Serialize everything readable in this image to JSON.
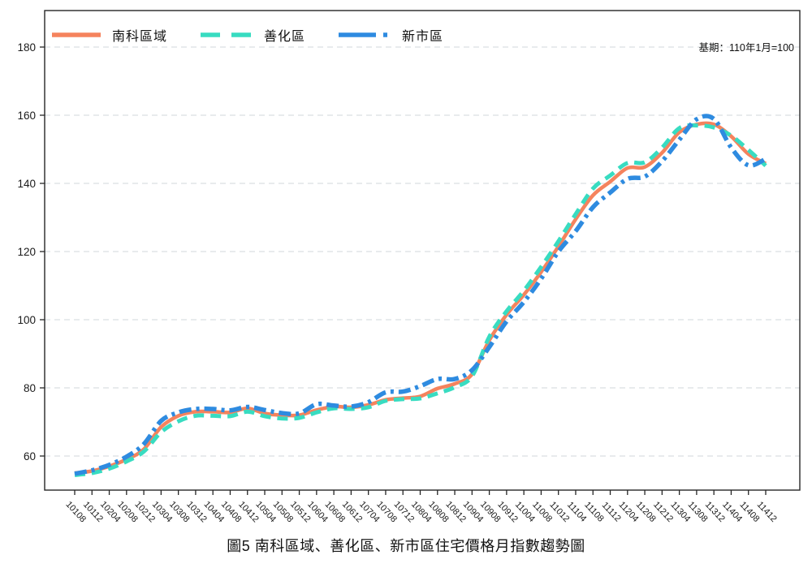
{
  "caption": "圖5 南科區域、善化區、新市區住宅價格月指數趨勢圖",
  "annotation": "基期：110年1月=100",
  "colors": {
    "nanke": "#F5835D",
    "shanhua": "#38DCC1",
    "xinshi": "#2E8BE0",
    "grid": "#d9dfe2",
    "spine": "#262626",
    "text": "#1a1a1a"
  },
  "chart_data": {
    "type": "line",
    "title": "圖5 南科區域、善化區、新市區住宅價格月指數趨勢圖",
    "annotation": "基期：110年1月=100",
    "x": [
      "10108",
      "10112",
      "10204",
      "10208",
      "10212",
      "10304",
      "10308",
      "10312",
      "10404",
      "10408",
      "10412",
      "10504",
      "10508",
      "10512",
      "10604",
      "10608",
      "10612",
      "10704",
      "10708",
      "10712",
      "10804",
      "10808",
      "10812",
      "10904",
      "10908",
      "10912",
      "11004",
      "11008",
      "11012",
      "11104",
      "11108",
      "11112",
      "11204",
      "11208",
      "11212",
      "11304",
      "11308",
      "11312",
      "11404",
      "11408",
      "11412"
    ],
    "series": [
      {
        "name": "南科區域",
        "color": "#F5835D",
        "style": "solid",
        "values": [
          55.0,
          55.6,
          57.0,
          59.0,
          62.0,
          68.5,
          71.8,
          73.0,
          73.0,
          72.8,
          74.0,
          72.5,
          72.0,
          72.0,
          73.5,
          74.5,
          74.3,
          75.0,
          76.5,
          77.0,
          77.5,
          79.8,
          81.2,
          84.0,
          94.0,
          101.5,
          107.3,
          114.0,
          121.5,
          129.5,
          136.5,
          140.5,
          144.5,
          144.8,
          149.0,
          155.0,
          157.3,
          157.3,
          153.8,
          148.6,
          145.8
        ]
      },
      {
        "name": "善化區",
        "color": "#38DCC1",
        "style": "dashed",
        "values": [
          54.4,
          55.0,
          56.3,
          58.4,
          61.3,
          67.0,
          70.2,
          71.8,
          71.8,
          71.7,
          73.0,
          71.7,
          71.0,
          71.2,
          72.8,
          74.0,
          73.8,
          74.3,
          76.2,
          76.7,
          76.9,
          78.4,
          80.2,
          83.4,
          95.0,
          102.5,
          108.5,
          115.5,
          123.0,
          131.0,
          138.5,
          142.3,
          146.0,
          146.2,
          150.5,
          156.2,
          157.0,
          156.4,
          154.0,
          149.8,
          145.2
        ]
      },
      {
        "name": "新市區",
        "color": "#2E8BE0",
        "style": "dashdot",
        "values": [
          54.8,
          55.8,
          57.4,
          59.8,
          63.5,
          70.3,
          72.8,
          73.8,
          73.8,
          73.4,
          74.4,
          73.5,
          72.6,
          72.5,
          75.2,
          74.8,
          74.5,
          75.8,
          78.7,
          78.9,
          80.5,
          82.6,
          82.6,
          85.2,
          92.0,
          99.5,
          105.2,
          112.0,
          120.0,
          126.0,
          133.0,
          137.3,
          141.3,
          142.0,
          146.5,
          152.8,
          158.8,
          158.9,
          150.5,
          145.3,
          147.2
        ]
      }
    ],
    "yticks": [
      60,
      80,
      100,
      120,
      140,
      160,
      180
    ],
    "ylim": [
      50,
      190.7
    ],
    "grid": true,
    "legend_position": "top-left",
    "base_index_note": "110年1月=100"
  }
}
